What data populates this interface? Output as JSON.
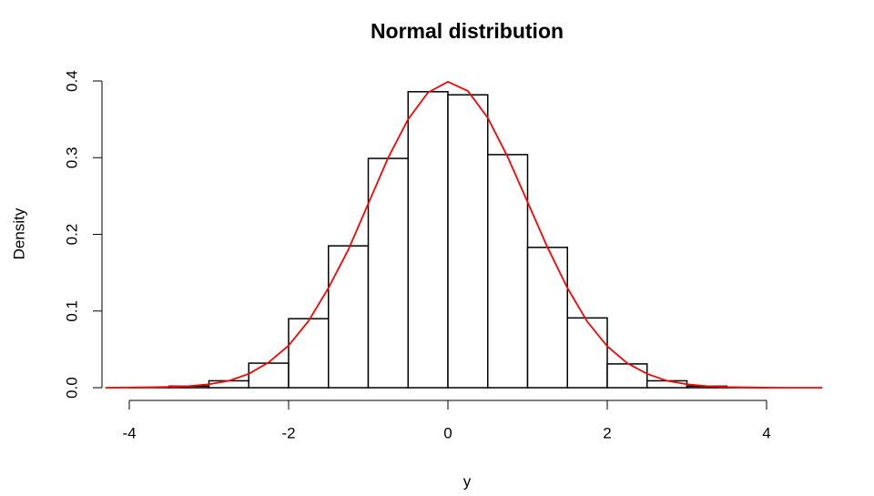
{
  "chart_data": {
    "type": "histogram",
    "title": "Normal distribution",
    "xlabel": "y",
    "ylabel": "Density",
    "bins": [
      -4,
      -3.5,
      -3,
      -2.5,
      -2,
      -1.5,
      -1,
      -0.5,
      0,
      0.5,
      1,
      1.5,
      2,
      2.5,
      3,
      3.5,
      4
    ],
    "values": [
      0.0003,
      0.002,
      0.009,
      0.032,
      0.09,
      0.185,
      0.299,
      0.386,
      0.382,
      0.304,
      0.183,
      0.091,
      0.031,
      0.009,
      0.002,
      0.0003
    ],
    "color": "#ffffff",
    "edgecolor": "#000000",
    "density": {
      "color": "#ff0000",
      "x": [
        -4.3,
        -4,
        -3.75,
        -3.5,
        -3.25,
        -3,
        -2.75,
        -2.5,
        -2.25,
        -2,
        -1.75,
        -1.5,
        -1.25,
        -1,
        -0.75,
        -0.5,
        -0.25,
        0,
        0.25,
        0.5,
        0.75,
        1,
        1.25,
        1.5,
        1.75,
        2,
        2.25,
        2.5,
        2.75,
        3,
        3.25,
        3.5,
        3.75,
        4,
        4.25,
        4.5,
        4.7
      ],
      "values": [
        0,
        0.0002,
        0.0005,
        0.001,
        0.002,
        0.0045,
        0.009,
        0.018,
        0.033,
        0.055,
        0.087,
        0.13,
        0.18,
        0.24,
        0.3,
        0.35,
        0.385,
        0.399,
        0.387,
        0.352,
        0.301,
        0.242,
        0.183,
        0.13,
        0.086,
        0.054,
        0.032,
        0.018,
        0.009,
        0.0044,
        0.002,
        0.0009,
        0.0004,
        0.0001,
        0,
        0,
        0
      ]
    },
    "xlim": [
      -4,
      4
    ],
    "ylim": [
      0,
      0.4
    ],
    "xticks": [
      -4,
      -2,
      0,
      2,
      4
    ],
    "yticks": [
      {
        "value": 0,
        "label": "0.0"
      },
      0.1,
      0.2,
      0.3,
      0.4
    ]
  }
}
